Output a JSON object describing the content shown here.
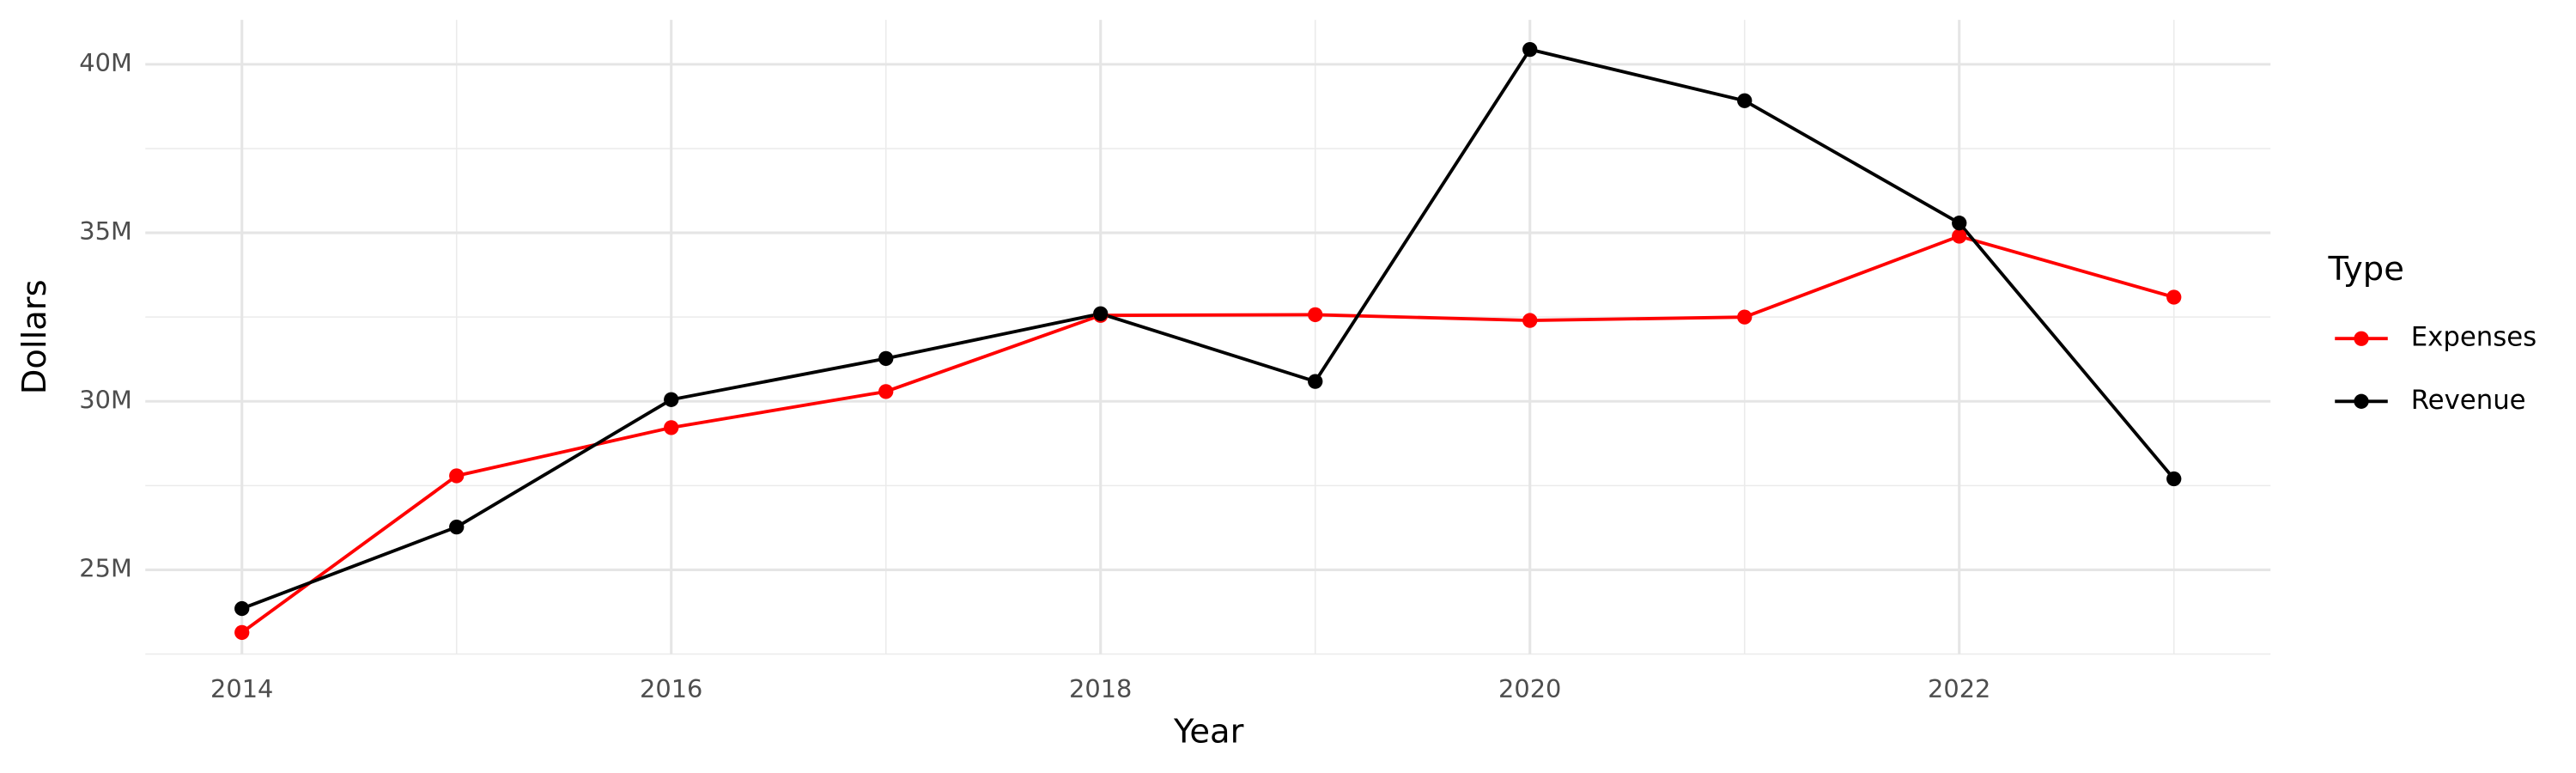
{
  "chart_data": {
    "type": "line",
    "x_label": "Year",
    "y_label": "Dollars",
    "legend_title": "Type",
    "legend_position": "right",
    "grid": true,
    "x": [
      2014,
      2015,
      2016,
      2017,
      2018,
      2019,
      2020,
      2021,
      2022,
      2023
    ],
    "series": [
      {
        "name": "Expenses",
        "color": "#ff0000",
        "values": [
          23140000,
          27790000,
          29220000,
          30290000,
          32550000,
          32570000,
          32400000,
          32500000,
          34900000,
          33090000
        ]
      },
      {
        "name": "Revenue",
        "color": "#000000",
        "values": [
          23850000,
          26270000,
          30050000,
          31270000,
          32600000,
          30590000,
          40440000,
          38920000,
          35290000,
          27700000
        ]
      }
    ],
    "xlim": [
      2013.55,
      2023.45
    ],
    "xticks": [
      2014,
      2016,
      2018,
      2020,
      2022
    ],
    "ylim": [
      22500000,
      41320000
    ],
    "yticks": [
      {
        "value": 25000000,
        "label": "25M"
      },
      {
        "value": 30000000,
        "label": "30M"
      },
      {
        "value": 35000000,
        "label": "35M"
      },
      {
        "value": 40000000,
        "label": "40M"
      }
    ]
  }
}
